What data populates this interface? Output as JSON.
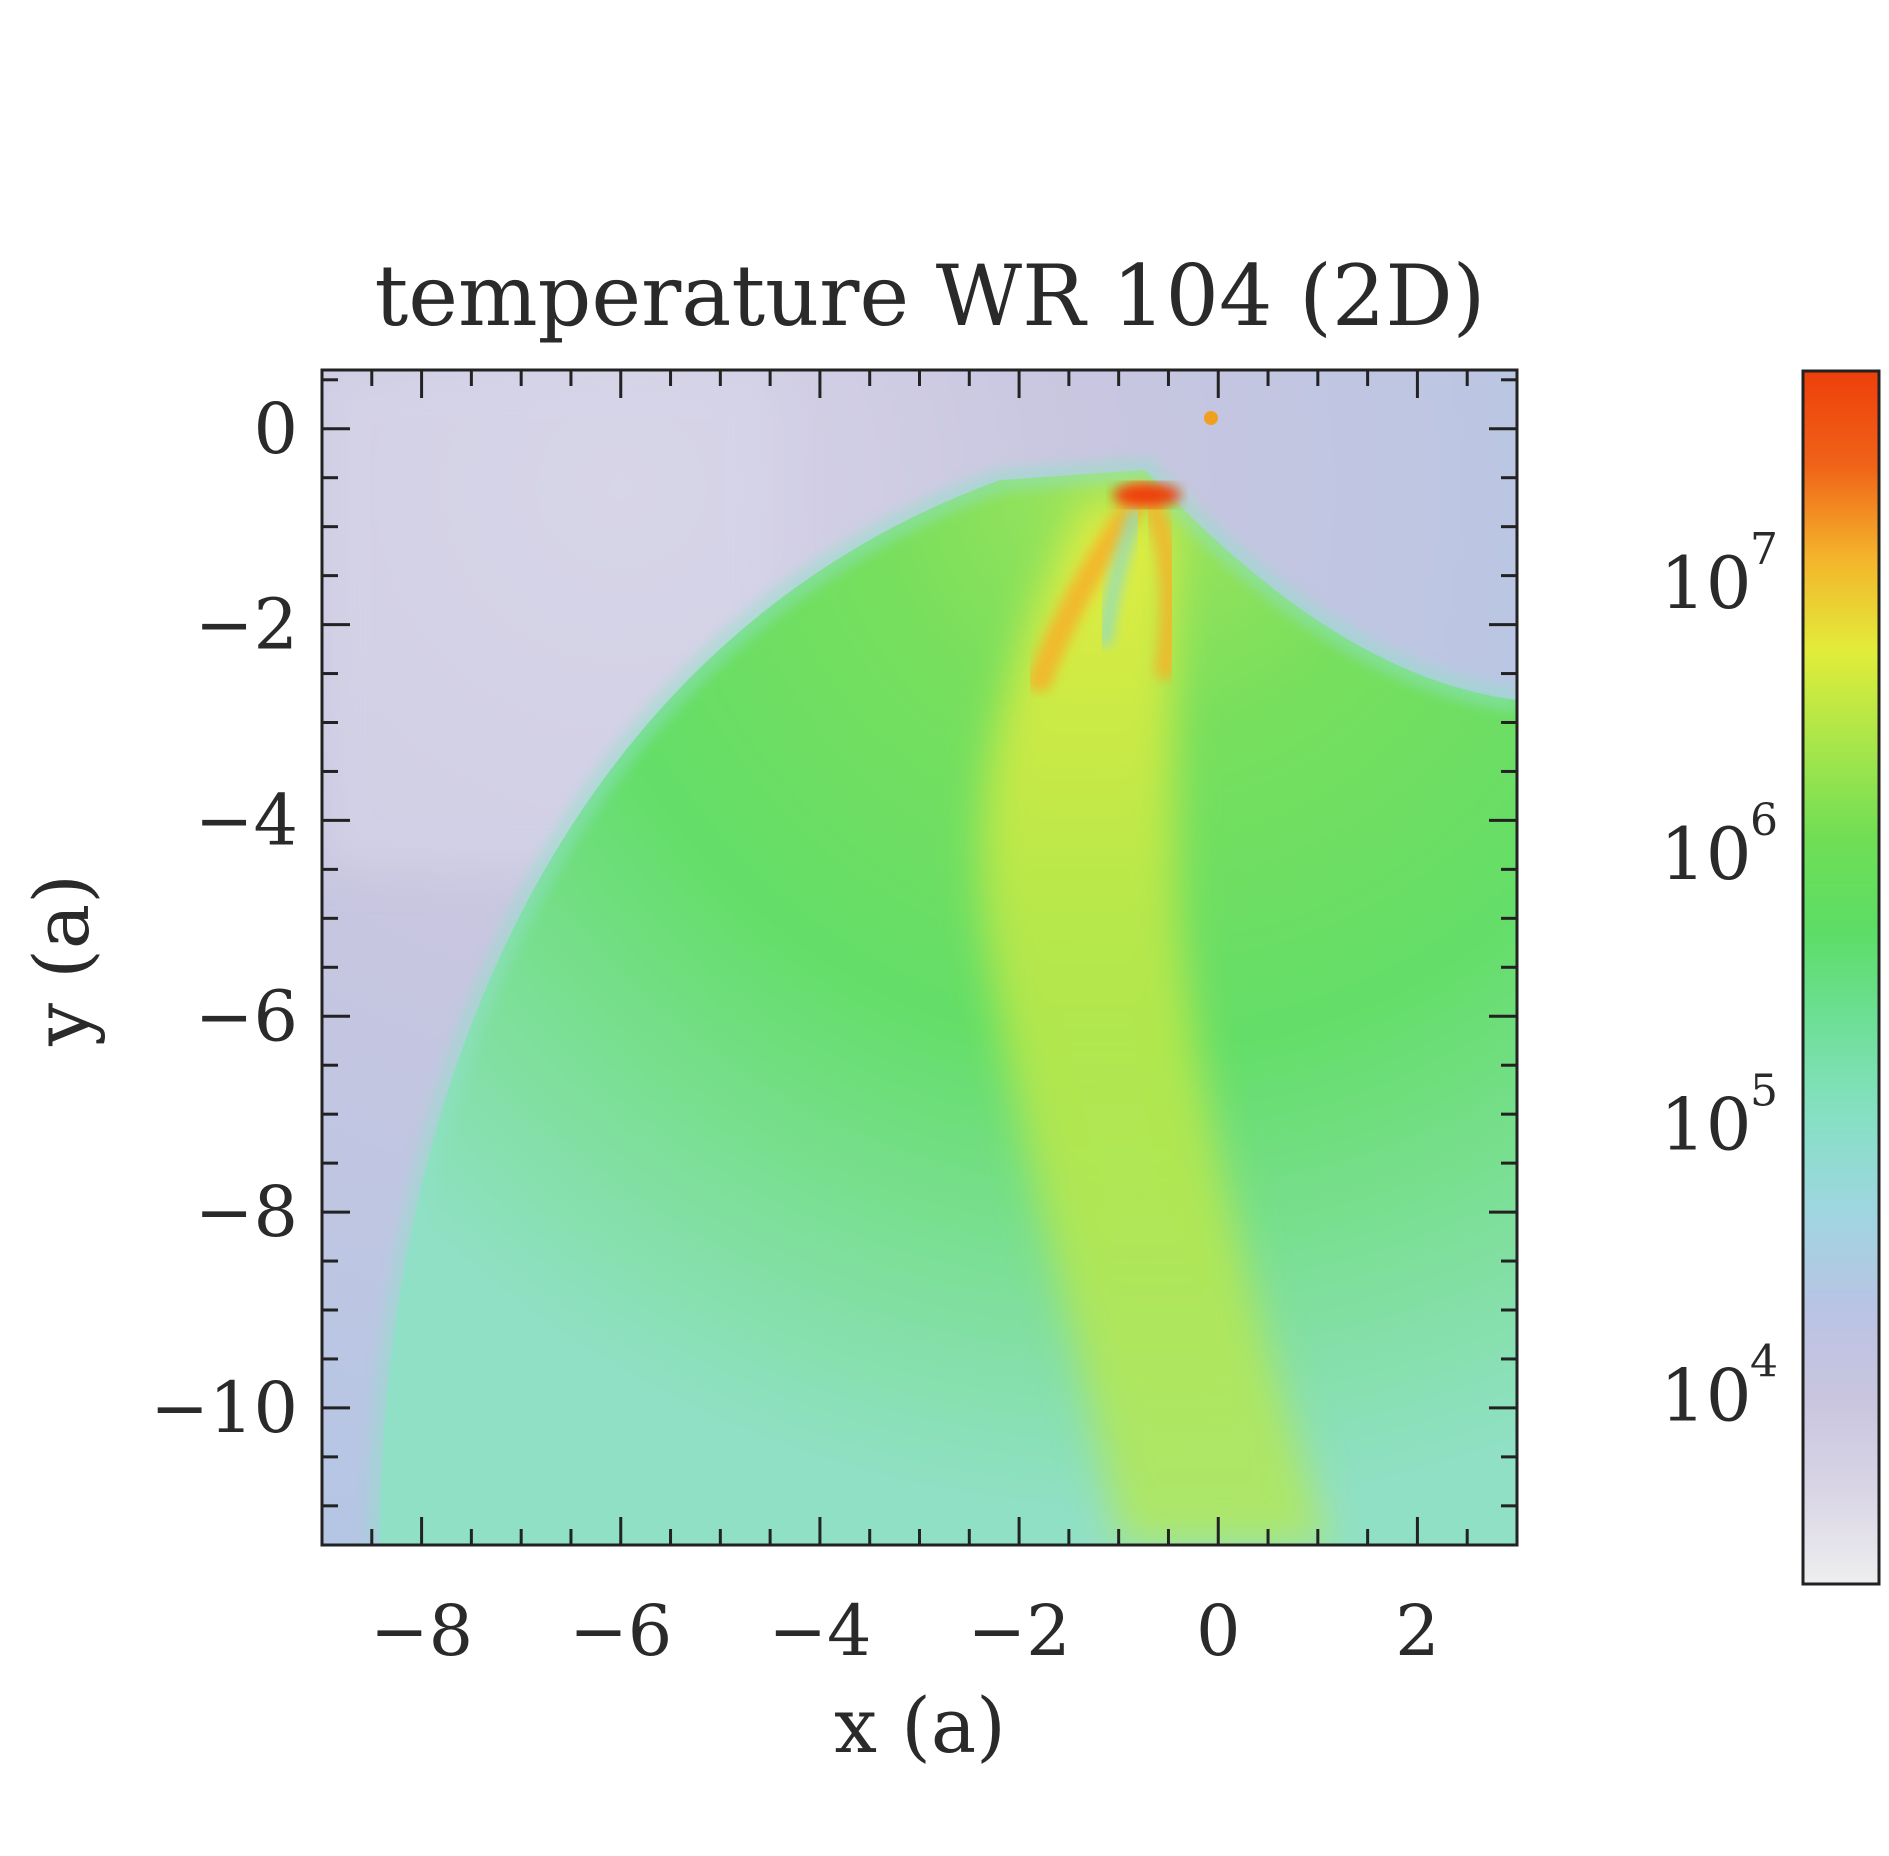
{
  "chart_data": {
    "type": "heatmap",
    "title": "temperature WR 104 (2D)",
    "xlabel": "x (a)",
    "ylabel": "y (a)",
    "xlim": [
      -9,
      3
    ],
    "ylim": [
      -11.4,
      0.6
    ],
    "x_ticks": [
      -8,
      -6,
      -4,
      -2,
      0,
      2
    ],
    "x_tick_labels": [
      "−8",
      "−6",
      "−4",
      "−2",
      "0",
      "2"
    ],
    "y_ticks": [
      0,
      -2,
      -4,
      -6,
      -8,
      -10
    ],
    "y_tick_labels": [
      "0",
      "−2",
      "−4",
      "−6",
      "−8",
      "−10"
    ],
    "colorbar": {
      "scale": "log",
      "range": [
        2000,
        60000000
      ],
      "ticks": [
        10000,
        100000,
        1000000,
        10000000
      ],
      "tick_bases": [
        "10",
        "10",
        "10",
        "10"
      ],
      "tick_exponents": [
        "4",
        "5",
        "6",
        "7"
      ],
      "colormap": [
        "#eeeeee",
        "#d9d5e6",
        "#c9c5df",
        "#b8c4e4",
        "#9fd6e0",
        "#86e0c4",
        "#6fdf98",
        "#5cdd66",
        "#70de55",
        "#a8e64a",
        "#e2ec3a",
        "#f4b42b",
        "#f06218",
        "#ee3f0c"
      ]
    },
    "features": {
      "shock_apex": [
        -0.7,
        -0.65
      ],
      "hot_spot": [
        -0.1,
        0.1
      ],
      "background_temperature": "1e5",
      "shock_temperature": "1e6-1e7",
      "apex_temperature": ">1e7"
    }
  }
}
